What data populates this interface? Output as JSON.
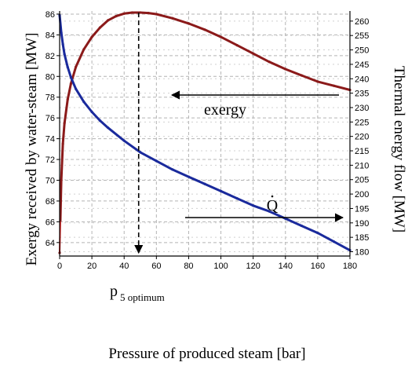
{
  "chart_data": {
    "type": "line",
    "xlabel": "Pressure of produced steam [bar]",
    "ylabel_left": "Exergy received by water-steam [MW]",
    "ylabel_right": "Thermal energy flow [MW]",
    "xlim": [
      0,
      180
    ],
    "ylim_left": [
      62.7,
      86.3
    ],
    "ylim_right": [
      178.5,
      263.5
    ],
    "x_ticks": [
      0,
      20,
      40,
      60,
      80,
      100,
      120,
      140,
      160,
      180
    ],
    "y_ticks_left": [
      64,
      66,
      68,
      70,
      72,
      74,
      76,
      78,
      80,
      82,
      84,
      86
    ],
    "y_ticks_right": [
      180,
      185,
      190,
      195,
      200,
      205,
      210,
      215,
      220,
      225,
      230,
      235,
      240,
      245,
      250,
      255,
      260
    ],
    "grid": true,
    "series": [
      {
        "axis": "left",
        "color": "#8b1a1a",
        "lowColor": "#e02020",
        "x": [
          0,
          1,
          2,
          3,
          5,
          7,
          10,
          15,
          20,
          25,
          30,
          35,
          40,
          45,
          50,
          55,
          60,
          70,
          80,
          90,
          100,
          110,
          120,
          130,
          140,
          150,
          160,
          170,
          180
        ],
        "values": [
          63.0,
          70.0,
          73.5,
          75.5,
          77.8,
          79.3,
          80.9,
          82.6,
          83.8,
          84.7,
          85.4,
          85.8,
          86.05,
          86.15,
          86.15,
          86.1,
          86.0,
          85.6,
          85.1,
          84.5,
          83.8,
          83.0,
          82.2,
          81.4,
          80.7,
          80.1,
          79.5,
          79.1,
          78.7
        ]
      },
      {
        "axis": "right",
        "color": "#1a2a9c",
        "x": [
          0,
          1,
          2,
          3,
          5,
          7,
          10,
          15,
          20,
          25,
          30,
          40,
          50,
          60,
          70,
          80,
          90,
          100,
          110,
          120,
          130,
          140,
          150,
          160,
          170,
          180
        ],
        "values": [
          262.0,
          256.0,
          252.0,
          248.5,
          244.0,
          240.5,
          236.5,
          232.0,
          228.5,
          225.5,
          223.0,
          218.5,
          214.5,
          211.5,
          208.5,
          206.0,
          203.5,
          201.0,
          198.5,
          196.0,
          194.0,
          191.5,
          189.0,
          186.5,
          183.5,
          180.5
        ]
      }
    ],
    "annotations": {
      "exergy": "exergy",
      "qdot": "Q",
      "p5_main": "p",
      "p5_sub": "5 optimum",
      "optimum_x": 49
    }
  }
}
